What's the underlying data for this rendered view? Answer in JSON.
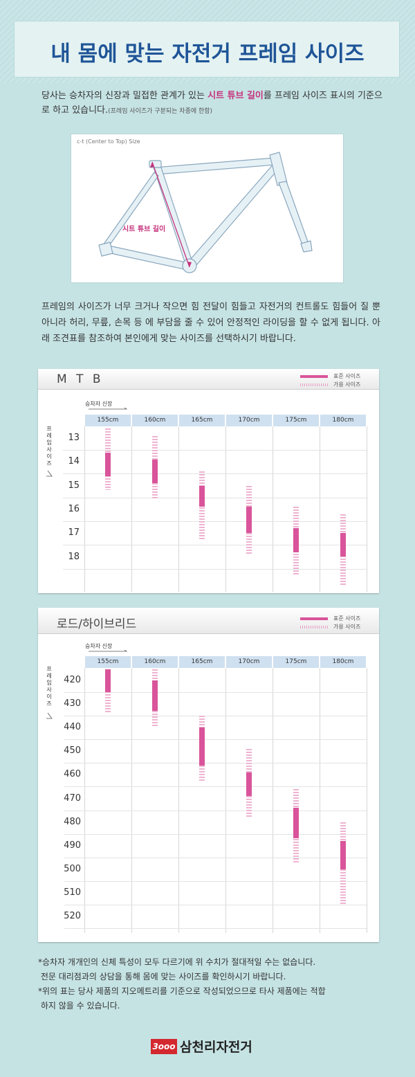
{
  "title": "내 몸에 맞는 자전거 프레임 사이즈",
  "intro": {
    "before": "당사는 승차자의 신장과 밀접한 관계가 있는 ",
    "highlight": "시트 튜브 길이",
    "after": "를 프레임 사이즈 표시의 기준으로 하고 있습니다.",
    "note": "(프레임 사이즈가 구분되는 차종에 한함)"
  },
  "diagram": {
    "caption": "c-t (Center to Top) Size",
    "label": "시트 튜브 길이"
  },
  "paragraph": "프레임의 사이즈가 너무 크거나 작으면 힘 전달이 힘들고 자전거의 컨트롤도 힘들어 질 뿐 아니라 허리, 무릎, 손목 등 에 부담을 줄 수 있어 안정적인 라이딩을 할 수 없게 됩니다. 아래 조견표를 참조하여 본인에게 맞는 사이즈를 선택하시기 바랍니다.",
  "legend": {
    "standard": "표준 사이즈",
    "usable": "가용 사이즈"
  },
  "axis": {
    "height_label": "승차자 신장",
    "frame_label": "프레임 사이즈"
  },
  "colors": {
    "standard": "#d9549a",
    "usable": "#eeb3d1",
    "header": "#1f5597",
    "accent": "#c6307b"
  },
  "chart_data": [
    {
      "type": "range",
      "title": "M T B",
      "categories": [
        "155cm",
        "160cm",
        "165cm",
        "170cm",
        "175cm",
        "180cm"
      ],
      "y_ticks": [
        "13",
        "14",
        "15",
        "16",
        "17",
        "18"
      ],
      "y_range": [
        12.5,
        18.5
      ],
      "usable": [
        [
          12.6,
          15.2
        ],
        [
          12.9,
          15.6
        ],
        [
          14.4,
          17.3
        ],
        [
          15.0,
          17.9
        ],
        [
          15.9,
          18.8
        ],
        [
          16.2,
          19.2
        ]
      ],
      "standard": [
        [
          13.6,
          14.6
        ],
        [
          13.9,
          14.9
        ],
        [
          15.0,
          15.9
        ],
        [
          15.9,
          17.0
        ],
        [
          16.8,
          17.8
        ],
        [
          17.0,
          18.0
        ]
      ]
    },
    {
      "type": "range",
      "title": "로드/하이브리드",
      "categories": [
        "155cm",
        "160cm",
        "165cm",
        "170cm",
        "175cm",
        "180cm"
      ],
      "y_ticks": [
        "420",
        "430",
        "440",
        "450",
        "460",
        "470",
        "480",
        "490",
        "500",
        "510",
        "520"
      ],
      "y_range": [
        415,
        525
      ],
      "usable": [
        [
          415,
          434
        ],
        [
          415,
          440
        ],
        [
          435,
          463
        ],
        [
          449,
          478
        ],
        [
          466,
          497
        ],
        [
          480,
          515
        ]
      ],
      "standard": [
        [
          415,
          425
        ],
        [
          420,
          433
        ],
        [
          440,
          456
        ],
        [
          459,
          469
        ],
        [
          474,
          487
        ],
        [
          488,
          500
        ]
      ]
    }
  ],
  "notes": [
    "*승차자 개개인의 신체 특성이 모두 다르기에 위 수치가 절대적일 수는 없습니다.",
    " 전문 대리점과의 상담을 통해 몸에 맞는 사이즈를 확인하시기 바랍니다.",
    "*위의 표는 당사 제품의 지오메트리를 기준으로 작성되었으므로 타사 제품에는 적합",
    " 하지 않을 수 있습니다."
  ],
  "logo": {
    "mark": "3ooo",
    "text": "삼천리자전거"
  }
}
